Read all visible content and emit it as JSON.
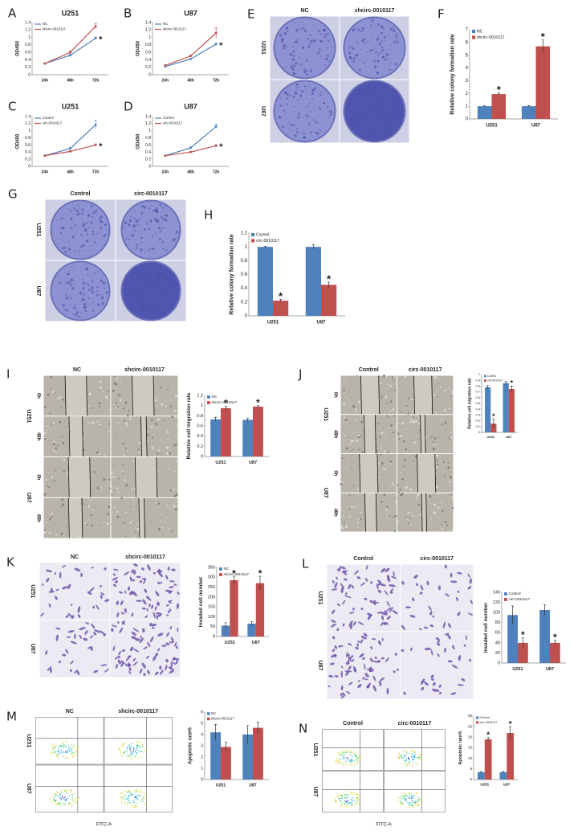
{
  "chart_data": [
    {
      "type": "line",
      "label": "A",
      "title": "U251",
      "ylabel": "OD450",
      "categories": [
        "24h",
        "48h",
        "72h"
      ],
      "ylim": [
        0,
        1.4
      ],
      "yticks": [
        0,
        0.2,
        0.4,
        0.6,
        0.8,
        1,
        1.2,
        1.4
      ],
      "grid": false,
      "legend": "upper left",
      "annotation": "*",
      "series": [
        {
          "name": "NC",
          "color": "#4f81bd",
          "values": [
            0.3,
            0.52,
            0.98
          ],
          "errors": [
            0.01,
            0.03,
            0.03
          ]
        },
        {
          "name": "shcirc-0010117",
          "color": "#c0504d",
          "values": [
            0.3,
            0.6,
            1.3
          ],
          "errors": [
            0.01,
            0.04,
            0.08
          ]
        }
      ]
    },
    {
      "type": "line",
      "label": "B",
      "title": "U87",
      "ylabel": "OD450",
      "categories": [
        "24h",
        "48h",
        "72h"
      ],
      "ylim": [
        0,
        1.4
      ],
      "yticks": [
        0,
        0.2,
        0.4,
        0.6,
        0.8,
        1,
        1.2,
        1.4
      ],
      "grid": false,
      "legend": "upper left",
      "annotation": "*",
      "series": [
        {
          "name": "NC",
          "color": "#4f81bd",
          "values": [
            0.22,
            0.42,
            0.82
          ],
          "errors": [
            0.01,
            0.02,
            0.03
          ]
        },
        {
          "name": "shcirc-0010117",
          "color": "#c0504d",
          "values": [
            0.25,
            0.5,
            1.12
          ],
          "errors": [
            0.02,
            0.03,
            0.14
          ]
        }
      ]
    },
    {
      "type": "line",
      "label": "C",
      "title": "U251",
      "ylabel": "OD450",
      "categories": [
        "24h",
        "48h",
        "72h"
      ],
      "ylim": [
        0,
        1.4
      ],
      "yticks": [
        0,
        0.2,
        0.4,
        0.6,
        0.8,
        1,
        1.2,
        1.4
      ],
      "grid": false,
      "legend": "upper left",
      "annotation": "*",
      "series": [
        {
          "name": "Control",
          "color": "#4f81bd",
          "values": [
            0.3,
            0.5,
            1.17
          ],
          "errors": [
            0.02,
            0.03,
            0.12
          ]
        },
        {
          "name": "circ-0010117",
          "color": "#c0504d",
          "values": [
            0.3,
            0.42,
            0.6
          ],
          "errors": [
            0.01,
            0.02,
            0.03
          ]
        }
      ]
    },
    {
      "type": "line",
      "label": "D",
      "title": "U87",
      "ylabel": "OD450",
      "categories": [
        "24h",
        "48h",
        "72h"
      ],
      "ylim": [
        0,
        1.4
      ],
      "yticks": [
        0,
        0.2,
        0.4,
        0.6,
        0.8,
        1,
        1.2,
        1.4
      ],
      "grid": false,
      "legend": "upper left",
      "annotation": "*",
      "series": [
        {
          "name": "Control",
          "color": "#4f81bd",
          "values": [
            0.3,
            0.52,
            1.12
          ],
          "errors": [
            0.01,
            0.03,
            0.06
          ]
        },
        {
          "name": "circ-0010117",
          "color": "#c0504d",
          "values": [
            0.3,
            0.4,
            0.58
          ],
          "errors": [
            0.01,
            0.02,
            0.03
          ]
        }
      ]
    },
    {
      "type": "bar",
      "label": "F",
      "ylabel": "Relative colony formation rate",
      "categories": [
        "U251",
        "U87"
      ],
      "ylim": [
        0,
        7
      ],
      "yticks": [
        0,
        1,
        2,
        3,
        4,
        5,
        6,
        7
      ],
      "grid": false,
      "legend": "upper left",
      "annotation": "*",
      "series": [
        {
          "name": "NC",
          "color": "#4f81bd",
          "values": [
            1,
            1
          ],
          "errors": [
            0.05,
            0.05
          ]
        },
        {
          "name": "shcirc-0010117",
          "color": "#c0504d",
          "values": [
            1.95,
            5.7
          ],
          "errors": [
            0.1,
            0.5
          ]
        }
      ]
    },
    {
      "type": "bar",
      "label": "H",
      "ylabel": "Relative colony formation rate",
      "categories": [
        "U251",
        "U87"
      ],
      "ylim": [
        0,
        1.2
      ],
      "yticks": [
        0,
        0.2,
        0.4,
        0.6,
        0.8,
        1,
        1.2
      ],
      "grid": false,
      "legend": "upper left",
      "annotation": "*",
      "series": [
        {
          "name": "Control",
          "color": "#4f81bd",
          "values": [
            1,
            1
          ],
          "errors": [
            0.01,
            0.03
          ]
        },
        {
          "name": "circ-0010117",
          "color": "#c0504d",
          "values": [
            0.22,
            0.45
          ],
          "errors": [
            0.02,
            0.04
          ]
        }
      ]
    },
    {
      "type": "bar",
      "ylabel": "Relative cell migration rate",
      "categories": [
        "U251",
        "U87"
      ],
      "ylim": [
        0,
        1.2
      ],
      "yticks": [
        0,
        0.2,
        0.4,
        0.6,
        0.8,
        1,
        1.2
      ],
      "grid": false,
      "legend": "upper left",
      "annotation": "*",
      "series": [
        {
          "name": "NC",
          "color": "#4f81bd",
          "values": [
            0.73,
            0.72
          ],
          "errors": [
            0.04,
            0.03
          ]
        },
        {
          "name": "shcirc-0010117",
          "color": "#c0504d",
          "values": [
            0.95,
            0.98
          ],
          "errors": [
            0.04,
            0.02
          ]
        }
      ]
    },
    {
      "type": "bar",
      "ylabel": "Relative cell migration rate",
      "categories": [
        "U251",
        "U87"
      ],
      "ylim": [
        0,
        1
      ],
      "yticks": [
        0,
        0.1,
        0.2,
        0.3,
        0.4,
        0.5,
        0.6,
        0.7,
        0.8,
        0.9,
        1
      ],
      "grid": false,
      "legend": "upper left",
      "annotation": "*",
      "series": [
        {
          "name": "Control",
          "color": "#4f81bd",
          "values": [
            0.78,
            0.85
          ],
          "errors": [
            0.03,
            0.03
          ]
        },
        {
          "name": "circ-0010117",
          "color": "#c0504d",
          "values": [
            0.15,
            0.75
          ],
          "errors": [
            0.08,
            0.05
          ]
        }
      ]
    },
    {
      "type": "bar",
      "ylabel": "Invaded cell number",
      "categories": [
        "U251",
        "U87"
      ],
      "ylim": [
        0,
        350
      ],
      "yticks": [
        0,
        50,
        100,
        150,
        200,
        250,
        300,
        350
      ],
      "grid": false,
      "legend": "upper left",
      "annotation": "*",
      "series": [
        {
          "name": "NC",
          "color": "#4f81bd",
          "values": [
            55,
            65
          ],
          "errors": [
            15,
            10
          ]
        },
        {
          "name": "shcirc-0010117",
          "color": "#c0504d",
          "values": [
            285,
            270
          ],
          "errors": [
            20,
            35
          ]
        }
      ]
    },
    {
      "type": "bar",
      "ylabel": "Invaded cell number",
      "categories": [
        "U251",
        "U87"
      ],
      "ylim": [
        0,
        140
      ],
      "yticks": [
        0,
        20,
        40,
        60,
        80,
        100,
        120,
        140
      ],
      "grid": false,
      "legend": "upper left",
      "annotation": "*",
      "series": [
        {
          "name": "Control",
          "color": "#4f81bd",
          "values": [
            95,
            105
          ],
          "errors": [
            18,
            10
          ]
        },
        {
          "name": "circ-0010117",
          "color": "#c0504d",
          "values": [
            40,
            40
          ],
          "errors": [
            10,
            5
          ]
        }
      ]
    },
    {
      "type": "bar",
      "ylabel": "Apoptotic rate%",
      "categories": [
        "U251",
        "U87"
      ],
      "ylim": [
        0,
        6
      ],
      "yticks": [
        0,
        1,
        2,
        3,
        4,
        5,
        6
      ],
      "grid": false,
      "legend": "upper left",
      "series": [
        {
          "name": "NC",
          "color": "#4f81bd",
          "values": [
            4.2,
            4.0
          ],
          "errors": [
            0.7,
            0.8
          ]
        },
        {
          "name": "shcirc-0010117",
          "color": "#c0504d",
          "values": [
            2.9,
            4.6
          ],
          "errors": [
            0.4,
            0.5
          ]
        }
      ]
    },
    {
      "type": "bar",
      "ylabel": "Apoptotic rate%",
      "categories": [
        "U251",
        "U87"
      ],
      "ylim": [
        0,
        30
      ],
      "yticks": [
        0,
        5,
        10,
        15,
        20,
        25,
        30
      ],
      "grid": false,
      "legend": "upper left",
      "annotation": "*",
      "series": [
        {
          "name": "Control",
          "color": "#4f81bd",
          "values": [
            3.5,
            3.5
          ],
          "errors": [
            0.2,
            0.3
          ]
        },
        {
          "name": "circ-0010117",
          "color": "#c0504d",
          "values": [
            19,
            22
          ],
          "errors": [
            0.8,
            3
          ]
        }
      ]
    }
  ],
  "image_panels": [
    {
      "label": "E",
      "columns": [
        "NC",
        "shcirc-0010117"
      ],
      "rows": [
        "U251",
        "U87"
      ]
    },
    {
      "label": "G",
      "columns": [
        "Control",
        "circ-0010117"
      ],
      "rows": [
        "U251",
        "U87"
      ]
    },
    {
      "label": "I",
      "columns": [
        "NC",
        "shcirc-0010117"
      ],
      "rows": [
        "U251",
        "U87"
      ],
      "sub_rows": [
        "0h",
        "48h"
      ]
    },
    {
      "label": "J",
      "columns": [
        "Control",
        "circ-0010117"
      ],
      "rows": [
        "U251",
        "U87"
      ],
      "sub_rows": [
        "0h",
        "48h"
      ]
    },
    {
      "label": "K",
      "columns": [
        "NC",
        "shcirc-0010117"
      ],
      "rows": [
        "U251",
        "U87"
      ]
    },
    {
      "label": "L",
      "columns": [
        "Control",
        "circ-0010117"
      ],
      "rows": [
        "U251",
        "U87"
      ]
    },
    {
      "label": "M",
      "columns": [
        "NC",
        "shcirc-0010117"
      ],
      "rows": [
        "U251",
        "U87"
      ],
      "x_label": "FITC-A"
    },
    {
      "label": "N",
      "columns": [
        "Control",
        "circ-0010117"
      ],
      "rows": [
        "U251",
        "U87"
      ],
      "x_label": "FITC-A"
    }
  ]
}
